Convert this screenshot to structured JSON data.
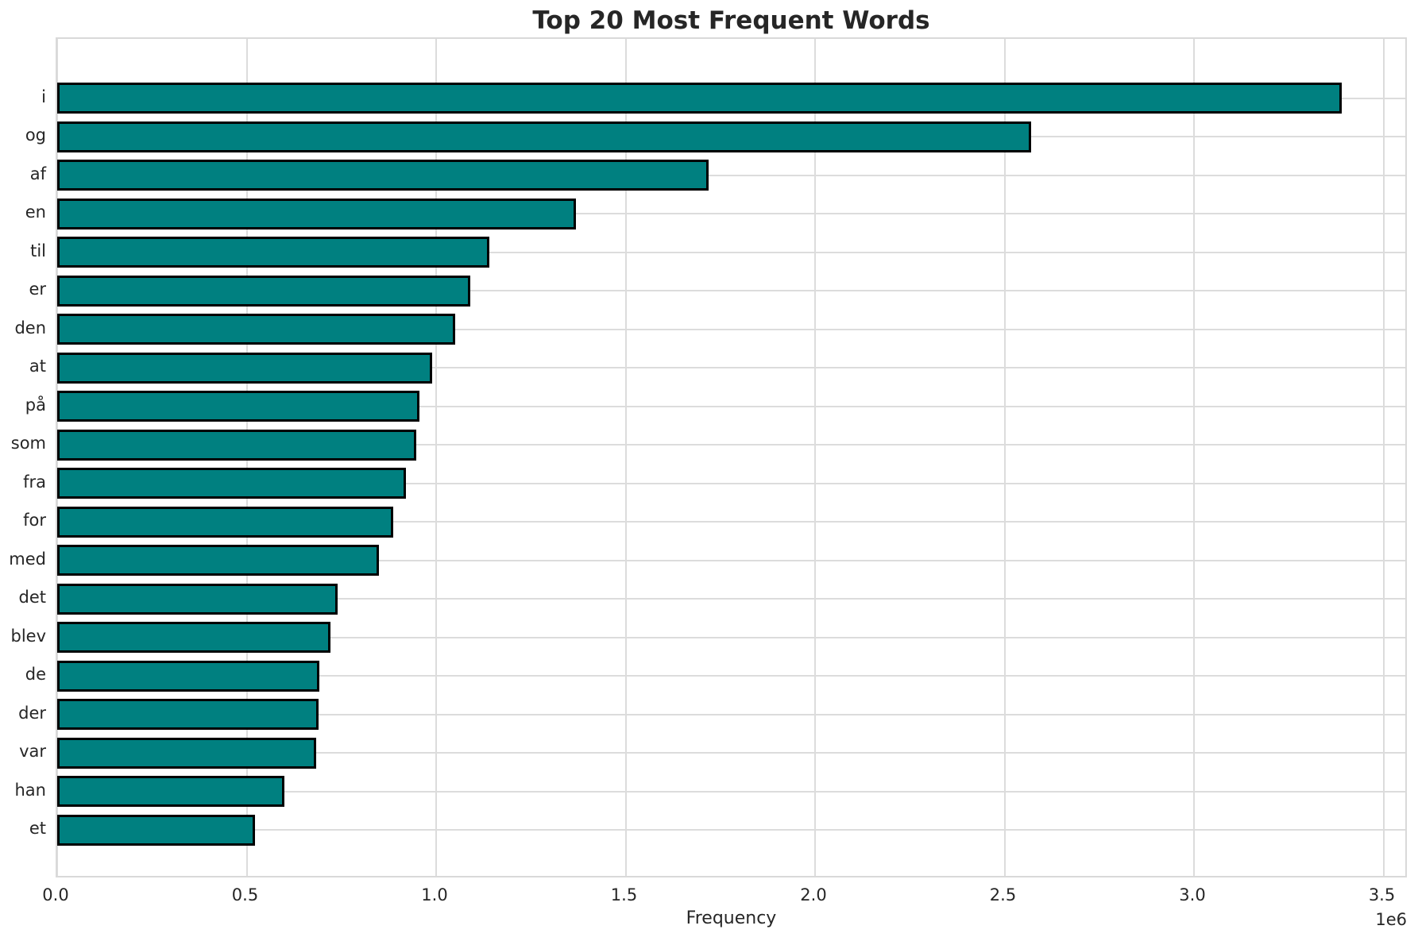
{
  "chart_data": {
    "type": "bar",
    "orientation": "horizontal",
    "title": "Top 20 Most Frequent Words",
    "xlabel": "Frequency",
    "ylabel": "",
    "offset_text": "1e6",
    "categories": [
      "i",
      "og",
      "af",
      "en",
      "til",
      "er",
      "den",
      "at",
      "på",
      "som",
      "fra",
      "for",
      "med",
      "det",
      "blev",
      "de",
      "der",
      "var",
      "han",
      "et"
    ],
    "values": [
      3390000,
      2570000,
      1720000,
      1370000,
      1140000,
      1090000,
      1050000,
      990000,
      956000,
      948000,
      920000,
      887000,
      849000,
      739000,
      722000,
      691000,
      689000,
      683000,
      599000,
      522000
    ],
    "xlim": [
      0,
      3566000
    ],
    "x_ticks": [
      0,
      500000,
      1000000,
      1500000,
      2000000,
      2500000,
      3000000,
      3500000
    ],
    "x_tick_labels": [
      "0.0",
      "0.5",
      "1.0",
      "1.5",
      "2.0",
      "2.5",
      "3.0",
      "3.5"
    ],
    "grid": true,
    "legend": "none",
    "bar_color": "#008080",
    "bar_edge_color": "#000000",
    "grid_color": "#dcdcdc",
    "frame_color": "#d9d9d9",
    "text_color": "#262626",
    "background_color": "#ffffff"
  }
}
